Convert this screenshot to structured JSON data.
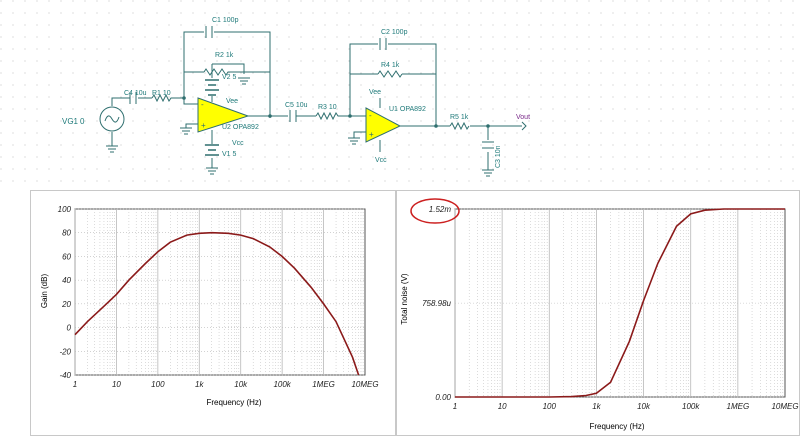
{
  "colors": {
    "wire": "#2f6f6f",
    "component_label": "#1f7a7a",
    "net_label": "#7a2a8a",
    "opamp_fill": "#ffff00",
    "curve": "#8b1a1a",
    "grid": "#b8b8b8",
    "highlight": "#cc2020"
  },
  "schematic": {
    "source": {
      "name": "VG1",
      "value": "0"
    },
    "c4": "C4 10u",
    "r1": "R1 10",
    "c1": "C1 100p",
    "r2": "R2 1k",
    "v2": "V2 5",
    "u2_vee": "Vee",
    "u2": "U2 OPA892",
    "u2_vcc": "Vcc",
    "v1": "V1 5",
    "c5": "C5 10u",
    "r3": "R3 10",
    "c2": "C2 100p",
    "r4": "R4 1k",
    "u1_vee": "Vee",
    "u1": "U1 OPA892",
    "u1_vcc": "Vcc",
    "r5": "R5 1k",
    "c3": "C3 10n",
    "vout": "Vout"
  },
  "chart_data": [
    {
      "type": "line",
      "xlabel": "Frequency (Hz)",
      "ylabel": "Gain (dB)",
      "x_scale": "log",
      "xlim": [
        1,
        10000000
      ],
      "ylim": [
        -40,
        100
      ],
      "x_ticks": [
        "1",
        "10",
        "100",
        "1k",
        "10k",
        "100k",
        "1MEG",
        "10MEG"
      ],
      "y_ticks": [
        "100",
        "80",
        "60",
        "40",
        "20",
        "0",
        "-20",
        "-40"
      ],
      "grid": true,
      "series": [
        {
          "x": [
            1,
            2,
            5,
            10,
            20,
            50,
            100,
            200,
            500,
            1000,
            2000,
            5000,
            10000,
            20000,
            50000,
            100000,
            200000,
            500000,
            1000000,
            2000000,
            5000000,
            7000000
          ],
          "y": [
            -6,
            5,
            18,
            28,
            40,
            54,
            64,
            72,
            78,
            79.5,
            80,
            79.5,
            78,
            75,
            68,
            60,
            50,
            34,
            20,
            5,
            -25,
            -40
          ]
        }
      ]
    },
    {
      "type": "line",
      "xlabel": "Frequency (Hz)",
      "ylabel": "Total noise (V)",
      "x_scale": "log",
      "xlim": [
        1,
        10000000
      ],
      "ylim": [
        0,
        0.00152
      ],
      "x_ticks": [
        "1",
        "10",
        "100",
        "1k",
        "10k",
        "100k",
        "1MEG",
        "10MEG"
      ],
      "y_ticks": [
        "1.52m",
        "758.98u",
        "0.00"
      ],
      "grid": true,
      "series": [
        {
          "x": [
            1,
            10,
            100,
            300,
            600,
            1000,
            2000,
            5000,
            10000,
            20000,
            50000,
            100000,
            200000,
            500000,
            1000000,
            2000000,
            5000000,
            10000000
          ],
          "y": [
            0,
            0,
            0,
            3e-06,
            1.2e-05,
            3e-05,
            0.00012,
            0.00045,
            0.00078,
            0.00108,
            0.00138,
            0.00148,
            0.00151,
            0.00152,
            0.00152,
            0.00152,
            0.00152,
            0.00152
          ]
        }
      ]
    }
  ]
}
